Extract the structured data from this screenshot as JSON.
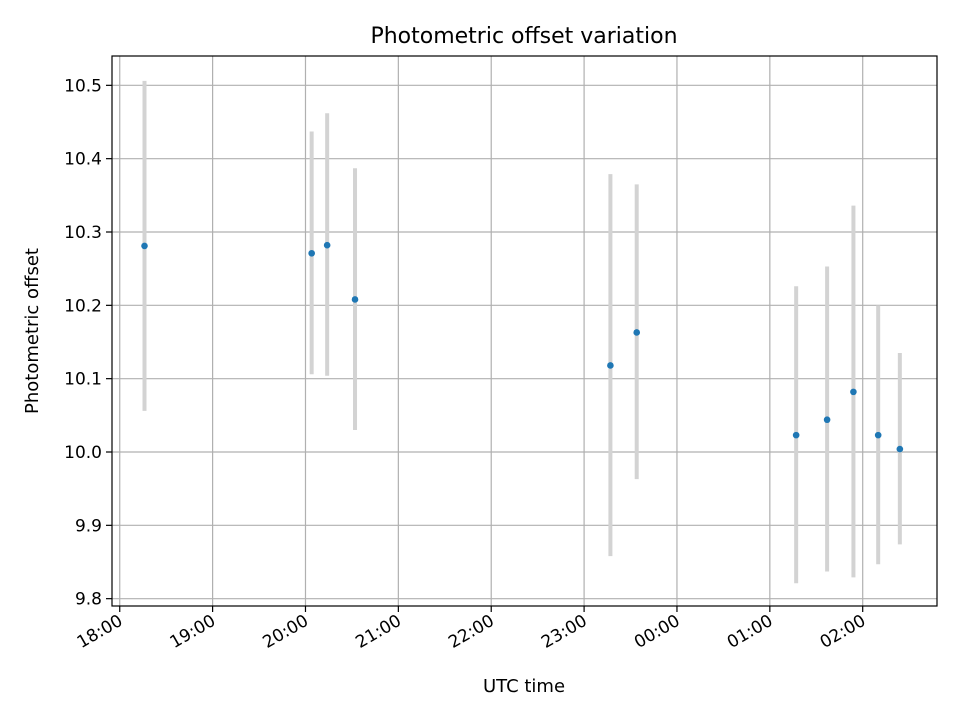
{
  "chart_data": {
    "type": "scatter",
    "title": "Photometric offset variation",
    "xlabel": "UTC time",
    "ylabel": "Photometric offset",
    "x_tick_labels": [
      "18:00",
      "19:00",
      "20:00",
      "21:00",
      "22:00",
      "23:00",
      "00:00",
      "01:00",
      "02:00"
    ],
    "y_tick_labels": [
      "9.8",
      "9.9",
      "10.0",
      "10.1",
      "10.2",
      "10.3",
      "10.4",
      "10.5"
    ],
    "y_ticks": [
      9.8,
      9.9,
      10.0,
      10.1,
      10.2,
      10.3,
      10.4,
      10.5
    ],
    "xlim": [
      "17:55",
      "02:48 (next day)"
    ],
    "ylim": [
      9.79,
      10.54
    ],
    "grid": true,
    "series": [
      {
        "points": [
          {
            "x": "18:16",
            "y": 10.281,
            "y_low": 10.056,
            "y_high": 10.506
          },
          {
            "x": "20:04",
            "y": 10.271,
            "y_low": 10.106,
            "y_high": 10.437
          },
          {
            "x": "20:14",
            "y": 10.282,
            "y_low": 10.104,
            "y_high": 10.462
          },
          {
            "x": "20:32",
            "y": 10.208,
            "y_low": 10.03,
            "y_high": 10.387
          },
          {
            "x": "23:17",
            "y": 10.118,
            "y_low": 9.858,
            "y_high": 10.379
          },
          {
            "x": "23:34",
            "y": 10.163,
            "y_low": 9.963,
            "y_high": 10.365
          },
          {
            "x": "01:17",
            "y": 10.023,
            "y_low": 9.821,
            "y_high": 10.226
          },
          {
            "x": "01:37",
            "y": 10.044,
            "y_low": 9.837,
            "y_high": 10.253
          },
          {
            "x": "01:54",
            "y": 10.082,
            "y_low": 9.829,
            "y_high": 10.336
          },
          {
            "x": "02:10",
            "y": 10.023,
            "y_low": 9.847,
            "y_high": 10.2
          },
          {
            "x": "02:24",
            "y": 10.004,
            "y_low": 9.874,
            "y_high": 10.135
          }
        ]
      }
    ],
    "colors": {
      "points": "#1f77b4",
      "error_bars": "#d3d3d3",
      "grid": "#b0b0b0",
      "frame": "#000000"
    }
  }
}
